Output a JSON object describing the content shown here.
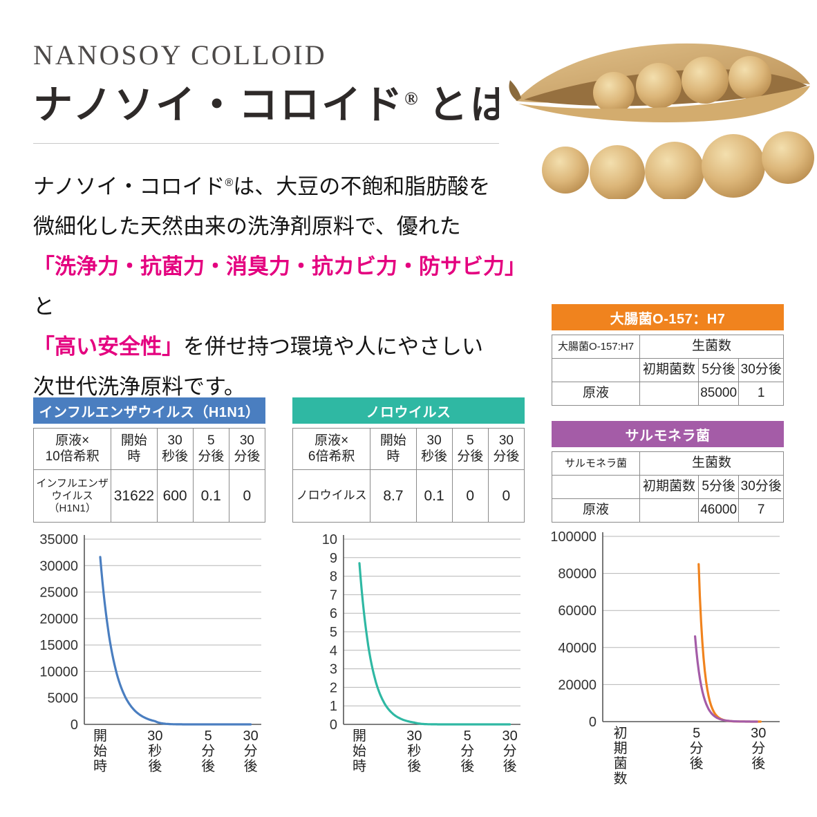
{
  "header": {
    "en_title": "NANOSOY COLLOID",
    "jp_title": "ナノソイ・コロイド",
    "reg_mark": "®",
    "jp_title_suffix": "とは"
  },
  "intro": {
    "seg1": "ナノソイ・コロイド",
    "seg2": "®",
    "seg3": "は、大豆の不飽和脂肪酸を",
    "seg4": "微細化した天然由来の洗浄剤原料で、優れた",
    "seg5": "「洗浄力・抗菌力・消臭力・抗カビ力・防サビ力」",
    "seg6": "と",
    "seg7": "「高い安全性」",
    "seg8": "を併せ持つ環境や人にやさしい",
    "seg9": "次世代洗浄原料です。",
    "accent_color": "#e4007f"
  },
  "sections": {
    "influenza": {
      "title": "インフルエンザウイルス（H1N1）",
      "color": "#4a7ec0",
      "table": [
        [
          "原液×\n10倍希釈",
          "開始\n時",
          "30\n秒後",
          "5\n分後",
          "30\n分後"
        ],
        [
          {
            "t": "インフルエンザ\nウイルス\n（H1N1）",
            "cls": "xs"
          },
          "31622",
          "600",
          "0.1",
          "0"
        ]
      ]
    },
    "noro": {
      "title": "ノロウイルス",
      "color": "#2fb8a3",
      "table": [
        [
          "原液×\n6倍希釈",
          "開始\n時",
          "30\n秒後",
          "5\n分後",
          "30\n分後"
        ],
        [
          {
            "t": "ノロウイルス",
            "cls": "sm"
          },
          "8.7",
          "0.1",
          "0",
          "0"
        ]
      ]
    },
    "ecoli": {
      "title": "大腸菌O-157：H7",
      "color": "#f0831e",
      "table": [
        [
          {
            "t": "大腸菌O-157:H7",
            "cls": "sm"
          },
          {
            "t": "生菌数",
            "colspan": 3
          }
        ],
        [
          "",
          "初期菌数",
          "5分後",
          "30分後"
        ],
        [
          "原液",
          "",
          "85000",
          "1"
        ]
      ]
    },
    "salmonella": {
      "title": "サルモネラ菌",
      "color": "#a45ca7",
      "table": [
        [
          {
            "t": "サルモネラ菌",
            "cls": "sm"
          },
          {
            "t": "生菌数",
            "colspan": 3
          }
        ],
        [
          "",
          "初期菌数",
          "5分後",
          "30分後"
        ],
        [
          "原液",
          "",
          "46000",
          "7"
        ]
      ]
    }
  },
  "chart_data": [
    {
      "type": "line",
      "title": "インフルエンザウイルス（H1N1）",
      "categories": [
        "開始時",
        "30秒後",
        "5分後",
        "30分後"
      ],
      "values": [
        31622,
        600,
        0.1,
        0
      ],
      "color": "#4a7ec0",
      "xlabel": "",
      "ylabel": "",
      "ylim": [
        0,
        35000
      ],
      "ytick_step": 5000,
      "grid": true,
      "legend": "none",
      "xpos": [
        0.09,
        0.4,
        0.7,
        0.94
      ]
    },
    {
      "type": "line",
      "title": "ノロウイルス",
      "categories": [
        "開始時",
        "30秒後",
        "5分後",
        "30分後"
      ],
      "values": [
        8.7,
        0.1,
        0,
        0
      ],
      "color": "#2fb8a3",
      "xlabel": "",
      "ylabel": "",
      "ylim": [
        0,
        10
      ],
      "ytick_step": 1,
      "grid": true,
      "legend": "none",
      "xpos": [
        0.09,
        0.4,
        0.7,
        0.94
      ]
    },
    {
      "type": "line",
      "title": "大腸菌O-157：H7 / サルモネラ菌",
      "categories": [
        "初期菌数",
        "5分後",
        "30分後"
      ],
      "series": [
        {
          "name": "大腸菌O-157：H7",
          "color": "#f0831e",
          "values": [
            null,
            85000,
            1
          ],
          "xshift": 0.012
        },
        {
          "name": "サルモネラ菌",
          "color": "#a45ca7",
          "values": [
            null,
            46000,
            7
          ],
          "xshift": -0.008
        }
      ],
      "xlabel": "",
      "ylabel": "",
      "ylim": [
        0,
        100000
      ],
      "ytick_step": 20000,
      "grid": true,
      "legend": "none",
      "xpos": [
        0.1,
        0.53,
        0.88
      ]
    }
  ]
}
